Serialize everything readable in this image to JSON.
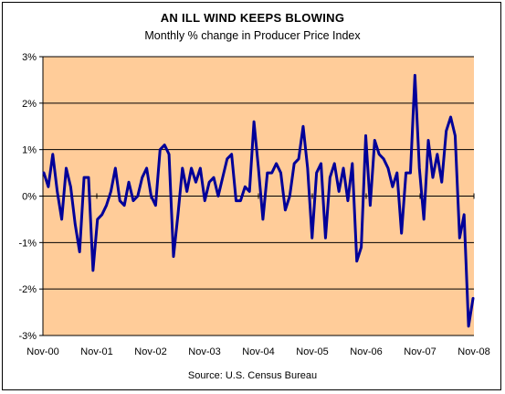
{
  "title": "AN ILL WIND KEEPS BLOWING",
  "subtitle": "Monthly % change in Producer Price Index",
  "source": "Source:  U.S. Census Bureau",
  "colors": {
    "plot_background": "#FFCC99",
    "line": "#000099",
    "gridline": "#000000"
  },
  "chart_data": {
    "type": "line",
    "title": "AN ILL WIND KEEPS BLOWING",
    "subtitle": "Monthly % change in Producer Price Index",
    "xlabel": "",
    "ylabel": "",
    "x_tick_labels": [
      "Nov-00",
      "Nov-01",
      "Nov-02",
      "Nov-03",
      "Nov-04",
      "Nov-05",
      "Nov-06",
      "Nov-07",
      "Nov-08"
    ],
    "y_tick_labels": [
      "3%",
      "2%",
      "1%",
      "0%",
      "-1%",
      "-2%",
      "-3%"
    ],
    "y_ticks": [
      3,
      2,
      1,
      0,
      -1,
      -2,
      -3
    ],
    "ylim": [
      -3,
      3
    ],
    "x_range": [
      "Nov-00",
      "Nov-08"
    ],
    "grid": true,
    "legend": "none",
    "series": [
      {
        "values": [
          0.5,
          0.2,
          0.9,
          0.1,
          -0.5,
          0.6,
          0.2,
          -0.6,
          -1.2,
          0.4,
          0.4,
          -1.6,
          -0.5,
          -0.4,
          -0.2,
          0.1,
          0.6,
          -0.1,
          -0.2,
          0.3,
          -0.1,
          0.0,
          0.4,
          0.6,
          0.0,
          -0.2,
          1.0,
          1.1,
          0.9,
          -1.3,
          -0.4,
          0.6,
          0.1,
          0.6,
          0.3,
          0.6,
          -0.1,
          0.3,
          0.4,
          0.0,
          0.4,
          0.8,
          0.9,
          -0.1,
          -0.1,
          0.2,
          0.1,
          1.6,
          0.6,
          -0.5,
          0.5,
          0.5,
          0.7,
          0.5,
          -0.3,
          0.0,
          0.7,
          0.8,
          1.5,
          0.6,
          -0.9,
          0.5,
          0.7,
          -0.9,
          0.4,
          0.7,
          0.1,
          0.6,
          -0.1,
          0.7,
          -1.4,
          -1.1,
          1.3,
          -0.2,
          1.2,
          0.9,
          0.8,
          0.6,
          0.2,
          0.5,
          -0.8,
          0.5,
          0.5,
          2.6,
          0.6,
          -0.5,
          1.2,
          0.4,
          0.9,
          0.3,
          1.4,
          1.7,
          1.3,
          -0.9,
          -0.4,
          -2.8,
          -2.2
        ]
      }
    ]
  }
}
